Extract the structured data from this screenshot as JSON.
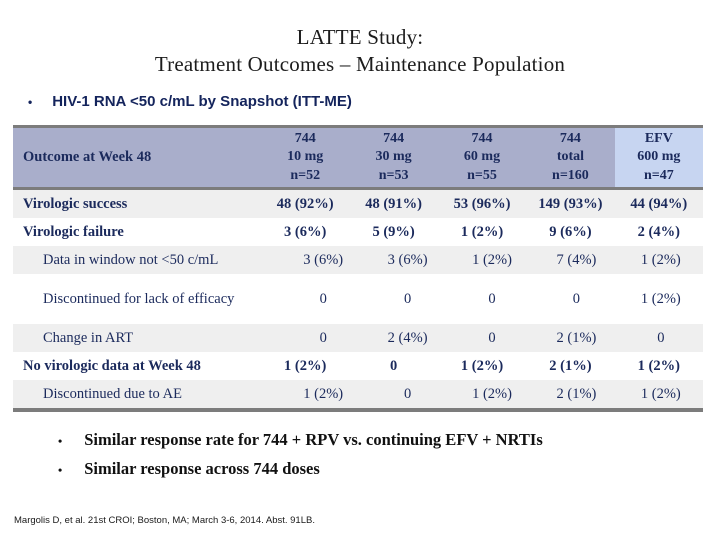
{
  "title": {
    "line1": "LATTE Study:",
    "line2": "Treatment Outcomes – Maintenance Population"
  },
  "subtitle_bullet": {
    "marker": "•",
    "text": "HIV-1 RNA <50 c/mL by Snapshot (ITT-ME)"
  },
  "colors": {
    "header_bg": "#a9aecb",
    "efv_highlight_bg": "#c7d5f1",
    "row_alt_bg": "#efefef",
    "table_border": "#7c7c7c",
    "navy_text": "#1b2a5c"
  },
  "table": {
    "header_label": "Outcome at Week 48",
    "columns": [
      {
        "line1": "744",
        "line2": "10 mg",
        "line3": "n=52"
      },
      {
        "line1": "744",
        "line2": "30 mg",
        "line3": "n=53"
      },
      {
        "line1": "744",
        "line2": "60 mg",
        "line3": "n=55"
      },
      {
        "line1": "744",
        "line2": "total",
        "line3": "n=160"
      },
      {
        "line1": "EFV",
        "line2": "600 mg",
        "line3": "n=47"
      }
    ],
    "rows": [
      {
        "label": "Virologic success",
        "values": [
          "48 (92%)",
          "48 (91%)",
          "53 (96%)",
          "149 (93%)",
          "44 (94%)"
        ]
      },
      {
        "label": "Virologic failure",
        "values": [
          "3 (6%)",
          "5 (9%)",
          "1 (2%)",
          "9 (6%)",
          "2 (4%)"
        ]
      },
      {
        "label": "Data in window not <50 c/mL",
        "values": [
          "3 (6%)",
          "3 (6%)",
          "1 (2%)",
          "7 (4%)",
          "1 (2%)"
        ]
      },
      {
        "label": "Discontinued for lack of efficacy",
        "values": [
          "0",
          "0",
          "0",
          "0",
          "1 (2%)"
        ]
      },
      {
        "label": "Change in ART",
        "values": [
          "0",
          "2 (4%)",
          "0",
          "2 (1%)",
          "0"
        ]
      },
      {
        "label": "No virologic data at Week 48",
        "values": [
          "1 (2%)",
          "0",
          "1 (2%)",
          "2 (1%)",
          "1 (2%)"
        ]
      },
      {
        "label": "Discontinued due to AE",
        "values": [
          "1 (2%)",
          "0",
          "1 (2%)",
          "2 (1%)",
          "1 (2%)"
        ]
      }
    ]
  },
  "summary_bullets": {
    "marker": "•",
    "items": [
      "Similar response rate for 744 + RPV vs. continuing EFV + NRTIs",
      "Similar response across 744 doses"
    ]
  },
  "citation": "Margolis D, et al. 21st CROI; Boston, MA; March 3-6, 2014. Abst. 91LB."
}
